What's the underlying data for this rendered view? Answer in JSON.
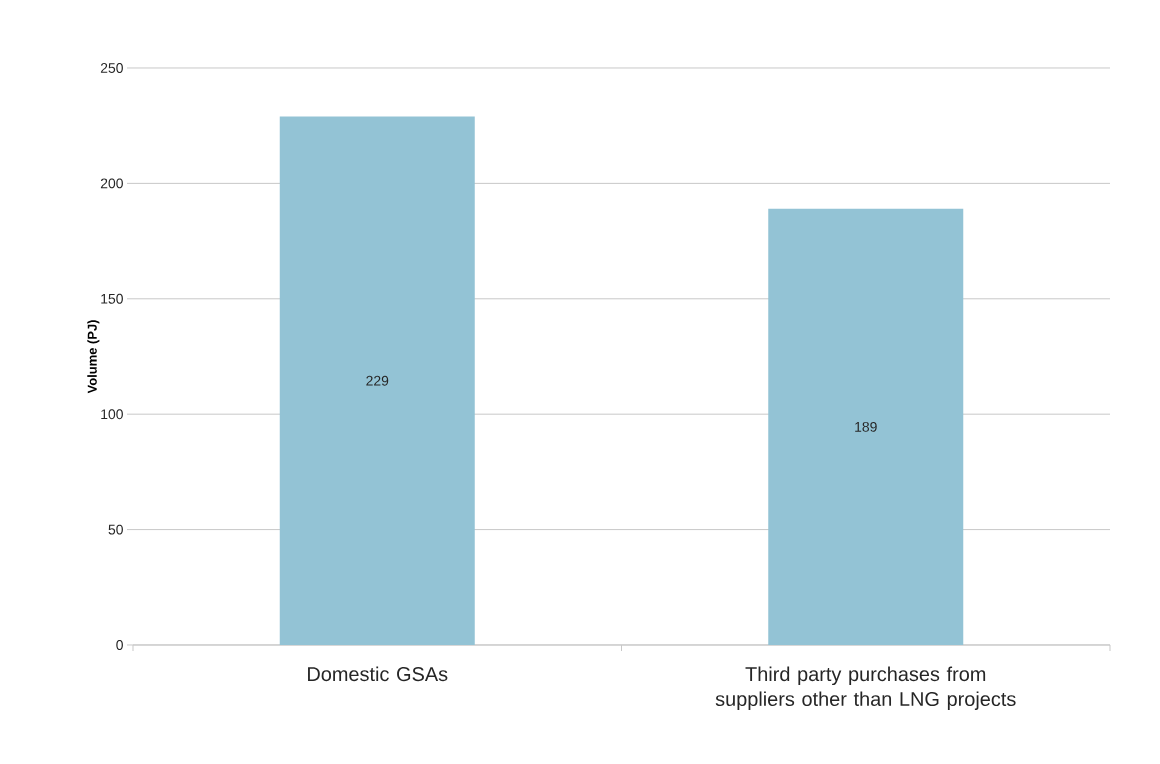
{
  "chart_data": {
    "type": "bar",
    "ylabel": "Volume (PJ)",
    "categories": [
      "Domestic GSAs",
      "Third party purchases from suppliers other than LNG projects"
    ],
    "values": [
      229,
      189
    ],
    "color": "#93c3d5",
    "ylim": [
      0,
      250
    ],
    "yticks": [
      0,
      50,
      100,
      150,
      200,
      250
    ],
    "grid": "y",
    "data_labels": true
  }
}
